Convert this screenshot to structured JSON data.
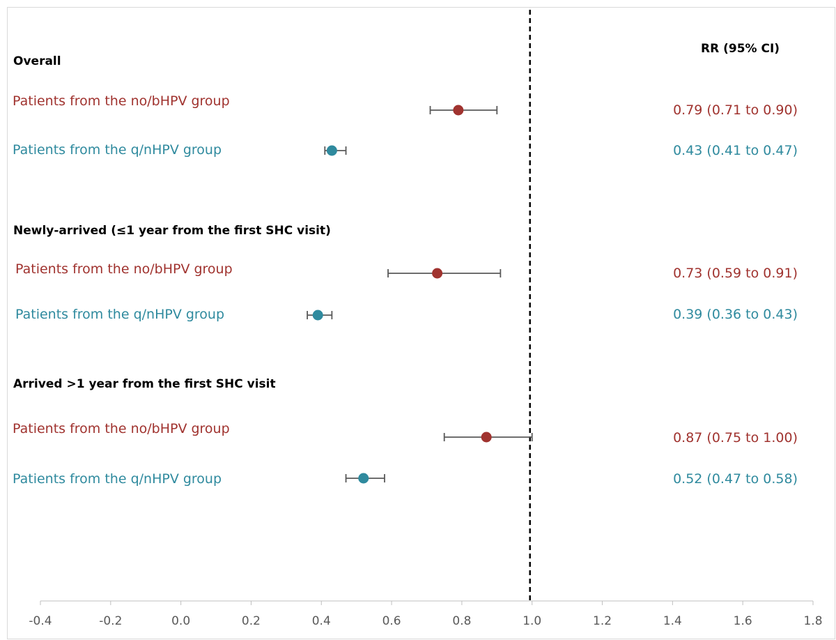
{
  "chart_data": {
    "type": "forest",
    "rr_header": "RR (95% CI)",
    "xlim": [
      -0.4,
      1.8
    ],
    "x_ticks": [
      -0.4,
      -0.2,
      0.0,
      0.2,
      0.4,
      0.6,
      0.8,
      1.0,
      1.2,
      1.4,
      1.6,
      1.8
    ],
    "x_tick_labels": [
      "-0.4",
      "-0.2",
      "0.0",
      "0.2",
      "0.4",
      "0.6",
      "0.8",
      "1.0",
      "1.2",
      "1.4",
      "1.6",
      "1.8"
    ],
    "reference_line": 1.0,
    "colors": {
      "no_bhpv": "#a0332f",
      "q_nhpv": "#2f8a9e",
      "whisker": "#595959"
    },
    "groups": [
      {
        "title": "Overall",
        "rows": [
          {
            "label": "Patients from the no/bHPV group",
            "rr": 0.79,
            "lo": 0.71,
            "hi": 0.9,
            "text": "0.79 (0.71 to 0.90)",
            "color_key": "no_bhpv"
          },
          {
            "label": "Patients from the q/nHPV group",
            "rr": 0.43,
            "lo": 0.41,
            "hi": 0.47,
            "text": "0.43 (0.41 to 0.47)",
            "color_key": "q_nhpv"
          }
        ]
      },
      {
        "title": "Newly-arrived (≤1 year from the first SHC visit)",
        "rows": [
          {
            "label": "Patients from the no/bHPV group",
            "rr": 0.73,
            "lo": 0.59,
            "hi": 0.91,
            "text": "0.73 (0.59 to 0.91)",
            "color_key": "no_bhpv"
          },
          {
            "label": "Patients from the q/nHPV group",
            "rr": 0.39,
            "lo": 0.36,
            "hi": 0.43,
            "text": "0.39 (0.36 to 0.43)",
            "color_key": "q_nhpv"
          }
        ]
      },
      {
        "title": "Arrived >1 year from the first SHC visit",
        "rows": [
          {
            "label": "Patients from the no/bHPV group",
            "rr": 0.87,
            "lo": 0.75,
            "hi": 1.0,
            "text": "0.87 (0.75 to 1.00)",
            "color_key": "no_bhpv"
          },
          {
            "label": "Patients from the q/nHPV group",
            "rr": 0.52,
            "lo": 0.47,
            "hi": 0.58,
            "text": "0.52 (0.47 to 0.58)",
            "color_key": "q_nhpv"
          }
        ]
      }
    ]
  }
}
